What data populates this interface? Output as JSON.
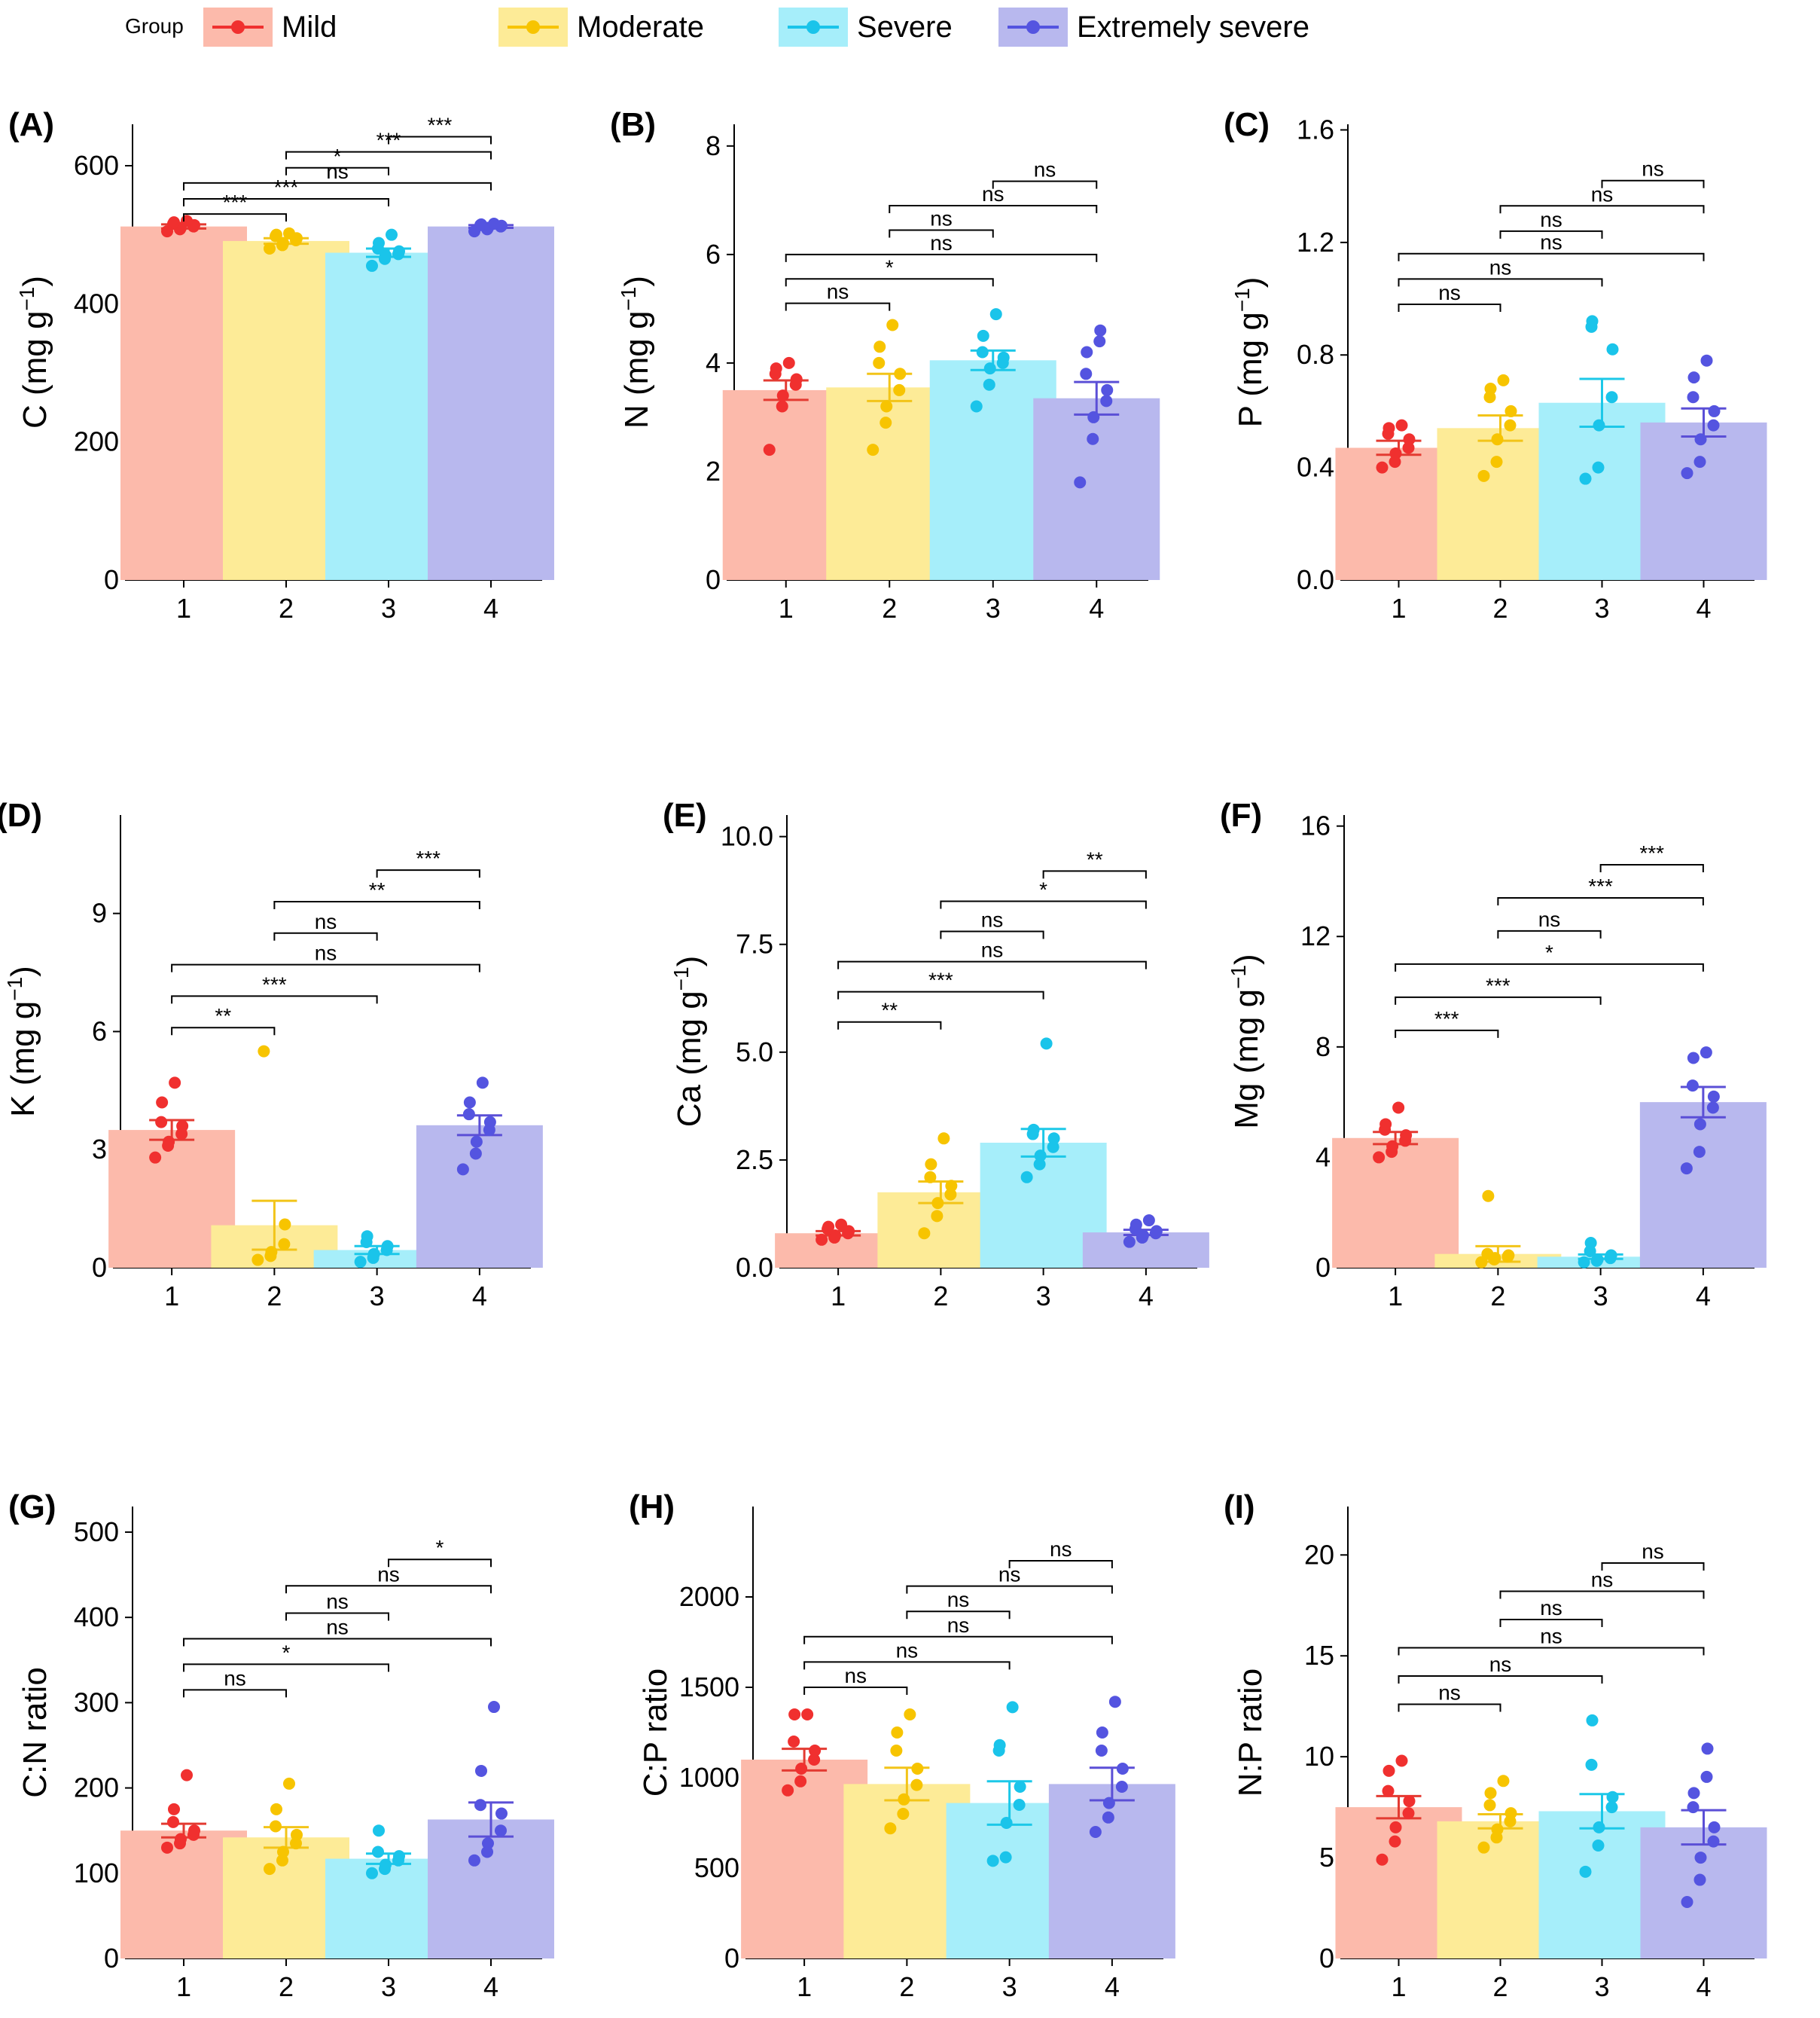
{
  "legend": {
    "title": "Group",
    "items": [
      {
        "label": "Mild",
        "fill": "#fcbaab",
        "point": "#f0302f"
      },
      {
        "label": "Moderate",
        "fill": "#fdeb97",
        "point": "#f7c400"
      },
      {
        "label": "Severe",
        "fill": "#a6eefa",
        "point": "#1ac4ea"
      },
      {
        "label": "Extremely severe",
        "fill": "#b8b8ee",
        "point": "#5454e0"
      }
    ]
  },
  "colors": {
    "axis": "#000000",
    "bar_fill": [
      "#fcbaab",
      "#fdeb97",
      "#a6eefa",
      "#b8b8ee"
    ],
    "point": [
      "#f0302f",
      "#f7c400",
      "#1ac4ea",
      "#5454e0"
    ],
    "errorbar": [
      "#e33b32",
      "#f2c419",
      "#1cc8e8",
      "#5b4fd6"
    ]
  },
  "chart_data": [
    {
      "panel": "(A)",
      "type": "bar",
      "ylabel_main": "C (mg g",
      "ylabel_sup": "−1",
      "ylabel_end": ")",
      "categories": [
        "1",
        "2",
        "3",
        "4"
      ],
      "ylim": [
        0,
        660
      ],
      "yticks": [
        "0",
        "200",
        "400",
        "600"
      ],
      "ytick_values": [
        0,
        200,
        400,
        600
      ],
      "means": [
        512,
        491,
        474,
        512
      ],
      "se": [
        3,
        4,
        6,
        2
      ],
      "points": [
        [
          505,
          508,
          510,
          512,
          514,
          516,
          518,
          520
        ],
        [
          480,
          485,
          488,
          492,
          495,
          498,
          500,
          502
        ],
        [
          455,
          465,
          470,
          472,
          476,
          480,
          488,
          500
        ],
        [
          505,
          508,
          510,
          512,
          513,
          514,
          515,
          516
        ]
      ],
      "comparisons": [
        {
          "groups": [
            1,
            2
          ],
          "label": "***",
          "y": 530
        },
        {
          "groups": [
            1,
            3
          ],
          "label": "***",
          "y": 552
        },
        {
          "groups": [
            1,
            4
          ],
          "label": "ns",
          "y": 575
        },
        {
          "groups": [
            2,
            3
          ],
          "label": "*",
          "y": 597
        },
        {
          "groups": [
            2,
            4
          ],
          "label": "***",
          "y": 620
        },
        {
          "groups": [
            3,
            4
          ],
          "label": "***",
          "y": 642
        }
      ]
    },
    {
      "panel": "(B)",
      "type": "bar",
      "ylabel_main": "N (mg g",
      "ylabel_sup": "−1",
      "ylabel_end": ")",
      "categories": [
        "1",
        "2",
        "3",
        "4"
      ],
      "ylim": [
        0,
        8.4
      ],
      "yticks": [
        "0",
        "2",
        "4",
        "6",
        "8"
      ],
      "ytick_values": [
        0,
        2,
        4,
        6,
        8
      ],
      "means": [
        3.5,
        3.55,
        4.05,
        3.35
      ],
      "se": [
        0.18,
        0.25,
        0.18,
        0.3
      ],
      "points": [
        [
          2.4,
          3.2,
          3.4,
          3.6,
          3.7,
          3.8,
          3.9,
          4.0
        ],
        [
          2.4,
          2.9,
          3.2,
          3.5,
          3.8,
          4.0,
          4.3,
          4.7
        ],
        [
          3.2,
          3.6,
          3.9,
          4.0,
          4.1,
          4.2,
          4.5,
          4.9
        ],
        [
          1.8,
          2.6,
          3.0,
          3.3,
          3.5,
          3.8,
          4.2,
          4.4,
          4.6
        ]
      ],
      "comparisons": [
        {
          "groups": [
            1,
            2
          ],
          "label": "ns",
          "y": 5.1
        },
        {
          "groups": [
            1,
            3
          ],
          "label": "*",
          "y": 5.55
        },
        {
          "groups": [
            1,
            4
          ],
          "label": "ns",
          "y": 6.0
        },
        {
          "groups": [
            2,
            3
          ],
          "label": "ns",
          "y": 6.45
        },
        {
          "groups": [
            2,
            4
          ],
          "label": "ns",
          "y": 6.9
        },
        {
          "groups": [
            3,
            4
          ],
          "label": "ns",
          "y": 7.35
        }
      ]
    },
    {
      "panel": "(C)",
      "type": "bar",
      "ylabel_main": "P  (mg g",
      "ylabel_sup": "−1",
      "ylabel_end": ")",
      "categories": [
        "1",
        "2",
        "3",
        "4"
      ],
      "ylim": [
        0,
        1.62
      ],
      "yticks": [
        "0.0",
        "0.4",
        "0.8",
        "1.2",
        "1.6"
      ],
      "ytick_values": [
        0,
        0.4,
        0.8,
        1.2,
        1.6
      ],
      "means": [
        0.47,
        0.54,
        0.63,
        0.56
      ],
      "se": [
        0.025,
        0.045,
        0.085,
        0.05
      ],
      "points": [
        [
          0.4,
          0.42,
          0.45,
          0.47,
          0.5,
          0.52,
          0.54,
          0.55
        ],
        [
          0.37,
          0.42,
          0.5,
          0.55,
          0.6,
          0.65,
          0.68,
          0.71
        ],
        [
          0.36,
          0.4,
          0.55,
          0.65,
          0.82,
          0.9,
          0.92
        ],
        [
          0.38,
          0.42,
          0.5,
          0.55,
          0.6,
          0.65,
          0.72,
          0.78
        ]
      ],
      "comparisons": [
        {
          "groups": [
            1,
            2
          ],
          "label": "ns",
          "y": 0.98
        },
        {
          "groups": [
            1,
            3
          ],
          "label": "ns",
          "y": 1.07
        },
        {
          "groups": [
            1,
            4
          ],
          "label": "ns",
          "y": 1.16
        },
        {
          "groups": [
            2,
            3
          ],
          "label": "ns",
          "y": 1.24
        },
        {
          "groups": [
            2,
            4
          ],
          "label": "ns",
          "y": 1.33
        },
        {
          "groups": [
            3,
            4
          ],
          "label": "ns",
          "y": 1.42
        }
      ]
    },
    {
      "panel": "(D)",
      "type": "bar",
      "ylabel_main": "K  (mg g",
      "ylabel_sup": "−1",
      "ylabel_end": ")",
      "categories": [
        "1",
        "2",
        "3",
        "4"
      ],
      "ylim": [
        0,
        11.5
      ],
      "yticks": [
        "0",
        "3",
        "6",
        "9"
      ],
      "ytick_values": [
        0,
        3,
        6,
        9
      ],
      "means": [
        3.5,
        1.08,
        0.45,
        3.62
      ],
      "se": [
        0.25,
        0.62,
        0.1,
        0.25
      ],
      "points": [
        [
          2.8,
          3.1,
          3.2,
          3.4,
          3.6,
          3.7,
          4.2,
          4.7
        ],
        [
          0.2,
          0.3,
          0.4,
          0.6,
          1.1,
          5.5
        ],
        [
          0.15,
          0.25,
          0.35,
          0.45,
          0.55,
          0.65,
          0.8
        ],
        [
          2.5,
          2.9,
          3.2,
          3.5,
          3.7,
          3.9,
          4.2,
          4.7
        ]
      ],
      "comparisons": [
        {
          "groups": [
            1,
            2
          ],
          "label": "**",
          "y": 6.1
        },
        {
          "groups": [
            1,
            3
          ],
          "label": "***",
          "y": 6.9
        },
        {
          "groups": [
            1,
            4
          ],
          "label": "ns",
          "y": 7.7
        },
        {
          "groups": [
            2,
            3
          ],
          "label": "ns",
          "y": 8.5
        },
        {
          "groups": [
            2,
            4
          ],
          "label": "**",
          "y": 9.3
        },
        {
          "groups": [
            3,
            4
          ],
          "label": "***",
          "y": 10.1
        }
      ]
    },
    {
      "panel": "(E)",
      "type": "bar",
      "ylabel_main": "Ca (mg g",
      "ylabel_sup": "−1",
      "ylabel_end": ")",
      "categories": [
        "1",
        "2",
        "3",
        "4"
      ],
      "ylim": [
        0,
        10.5
      ],
      "yticks": [
        "0.0",
        "2.5",
        "5.0",
        "7.5",
        "10.0"
      ],
      "ytick_values": [
        0,
        2.5,
        5,
        7.5,
        10
      ],
      "means": [
        0.8,
        1.75,
        2.9,
        0.82
      ],
      "se": [
        0.05,
        0.25,
        0.32,
        0.06
      ],
      "points": [
        [
          0.65,
          0.7,
          0.75,
          0.8,
          0.85,
          0.9,
          0.95,
          1.0
        ],
        [
          0.8,
          1.2,
          1.5,
          1.7,
          1.9,
          2.1,
          2.4,
          3.0
        ],
        [
          2.1,
          2.4,
          2.6,
          2.8,
          3.0,
          3.1,
          3.2,
          5.2
        ],
        [
          0.6,
          0.7,
          0.75,
          0.8,
          0.85,
          0.9,
          1.0,
          1.1
        ]
      ],
      "comparisons": [
        {
          "groups": [
            1,
            2
          ],
          "label": "**",
          "y": 5.7
        },
        {
          "groups": [
            1,
            3
          ],
          "label": "***",
          "y": 6.4
        },
        {
          "groups": [
            1,
            4
          ],
          "label": "ns",
          "y": 7.1
        },
        {
          "groups": [
            2,
            3
          ],
          "label": "ns",
          "y": 7.8
        },
        {
          "groups": [
            2,
            4
          ],
          "label": "*",
          "y": 8.5
        },
        {
          "groups": [
            3,
            4
          ],
          "label": "**",
          "y": 9.2
        }
      ]
    },
    {
      "panel": "(F)",
      "type": "bar",
      "ylabel_main": "Mg (mg g",
      "ylabel_sup": "−1",
      "ylabel_end": ")",
      "categories": [
        "1",
        "2",
        "3",
        "4"
      ],
      "ylim": [
        0,
        16.4
      ],
      "yticks": [
        "0",
        "4",
        "8",
        "12",
        "16"
      ],
      "ytick_values": [
        0,
        4,
        8,
        12,
        16
      ],
      "means": [
        4.7,
        0.5,
        0.4,
        6.0
      ],
      "se": [
        0.22,
        0.28,
        0.08,
        0.55
      ],
      "points": [
        [
          4.0,
          4.2,
          4.4,
          4.6,
          4.8,
          5.0,
          5.2,
          5.8
        ],
        [
          0.2,
          0.3,
          0.35,
          0.4,
          0.45,
          0.5,
          2.6
        ],
        [
          0.2,
          0.25,
          0.3,
          0.35,
          0.45,
          0.6,
          0.9
        ],
        [
          3.6,
          4.2,
          5.2,
          5.8,
          6.2,
          6.6,
          7.6,
          7.8
        ]
      ],
      "comparisons": [
        {
          "groups": [
            1,
            2
          ],
          "label": "***",
          "y": 8.6
        },
        {
          "groups": [
            1,
            3
          ],
          "label": "***",
          "y": 9.8
        },
        {
          "groups": [
            1,
            4
          ],
          "label": "*",
          "y": 11.0
        },
        {
          "groups": [
            2,
            3
          ],
          "label": "ns",
          "y": 12.2
        },
        {
          "groups": [
            2,
            4
          ],
          "label": "***",
          "y": 13.4
        },
        {
          "groups": [
            3,
            4
          ],
          "label": "***",
          "y": 14.6
        }
      ]
    },
    {
      "panel": "(G)",
      "type": "bar",
      "ylabel_main": "C:N ratio",
      "ylabel_sup": "",
      "ylabel_end": "",
      "categories": [
        "1",
        "2",
        "3",
        "4"
      ],
      "ylim": [
        0,
        530
      ],
      "yticks": [
        "0",
        "100",
        "200",
        "300",
        "400",
        "500"
      ],
      "ytick_values": [
        0,
        100,
        200,
        300,
        400,
        500
      ],
      "means": [
        150,
        142,
        117,
        163
      ],
      "se": [
        8,
        12,
        6,
        20
      ],
      "points": [
        [
          130,
          135,
          140,
          145,
          150,
          160,
          175,
          215
        ],
        [
          105,
          115,
          125,
          135,
          145,
          155,
          175,
          205
        ],
        [
          100,
          105,
          110,
          115,
          120,
          125,
          150
        ],
        [
          115,
          125,
          135,
          150,
          170,
          180,
          220,
          295
        ]
      ],
      "comparisons": [
        {
          "groups": [
            1,
            2
          ],
          "label": "ns",
          "y": 315
        },
        {
          "groups": [
            1,
            3
          ],
          "label": "*",
          "y": 345
        },
        {
          "groups": [
            1,
            4
          ],
          "label": "ns",
          "y": 375
        },
        {
          "groups": [
            2,
            3
          ],
          "label": "ns",
          "y": 405
        },
        {
          "groups": [
            2,
            4
          ],
          "label": "ns",
          "y": 437
        },
        {
          "groups": [
            3,
            4
          ],
          "label": "*",
          "y": 468
        }
      ]
    },
    {
      "panel": "(H)",
      "type": "bar",
      "ylabel_main": "C:P ratio",
      "ylabel_sup": "",
      "ylabel_end": "",
      "categories": [
        "1",
        "2",
        "3",
        "4"
      ],
      "ylim": [
        0,
        2500
      ],
      "yticks": [
        "0",
        "500",
        "1000",
        "1500",
        "2000"
      ],
      "ytick_values": [
        0,
        500,
        1000,
        1500,
        2000
      ],
      "means": [
        1100,
        965,
        860,
        965
      ],
      "se": [
        60,
        90,
        120,
        90
      ],
      "points": [
        [
          930,
          980,
          1050,
          1100,
          1150,
          1200,
          1350,
          1350
        ],
        [
          720,
          800,
          880,
          960,
          1050,
          1150,
          1250,
          1350
        ],
        [
          540,
          560,
          750,
          850,
          950,
          1150,
          1180,
          1390
        ],
        [
          700,
          780,
          860,
          950,
          1050,
          1150,
          1250,
          1420
        ]
      ],
      "comparisons": [
        {
          "groups": [
            1,
            2
          ],
          "label": "ns",
          "y": 1500
        },
        {
          "groups": [
            1,
            3
          ],
          "label": "ns",
          "y": 1640
        },
        {
          "groups": [
            1,
            4
          ],
          "label": "ns",
          "y": 1780
        },
        {
          "groups": [
            2,
            3
          ],
          "label": "ns",
          "y": 1920
        },
        {
          "groups": [
            2,
            4
          ],
          "label": "ns",
          "y": 2060
        },
        {
          "groups": [
            3,
            4
          ],
          "label": "ns",
          "y": 2200
        }
      ]
    },
    {
      "panel": "(I)",
      "type": "bar",
      "ylabel_main": "N:P ratio",
      "ylabel_sup": "",
      "ylabel_end": "",
      "categories": [
        "1",
        "2",
        "3",
        "4"
      ],
      "ylim": [
        0,
        22.4
      ],
      "yticks": [
        "0",
        "5",
        "10",
        "15",
        "20"
      ],
      "ytick_values": [
        0,
        5,
        10,
        15,
        20
      ],
      "means": [
        7.5,
        6.8,
        7.3,
        6.5
      ],
      "se": [
        0.55,
        0.35,
        0.85,
        0.85
      ],
      "points": [
        [
          4.9,
          5.8,
          6.5,
          7.2,
          7.8,
          8.3,
          9.3,
          9.8
        ],
        [
          5.5,
          6.0,
          6.4,
          6.8,
          7.2,
          7.6,
          8.2,
          8.8
        ],
        [
          4.3,
          5.6,
          6.5,
          7.5,
          8.0,
          9.6,
          11.8
        ],
        [
          2.8,
          3.9,
          5.0,
          5.8,
          6.5,
          7.5,
          8.2,
          9.0,
          10.4
        ]
      ],
      "comparisons": [
        {
          "groups": [
            1,
            2
          ],
          "label": "ns",
          "y": 12.6
        },
        {
          "groups": [
            1,
            3
          ],
          "label": "ns",
          "y": 14.0
        },
        {
          "groups": [
            1,
            4
          ],
          "label": "ns",
          "y": 15.4
        },
        {
          "groups": [
            2,
            3
          ],
          "label": "ns",
          "y": 16.8
        },
        {
          "groups": [
            2,
            4
          ],
          "label": "ns",
          "y": 18.2
        },
        {
          "groups": [
            3,
            4
          ],
          "label": "ns",
          "y": 19.6
        }
      ]
    }
  ]
}
